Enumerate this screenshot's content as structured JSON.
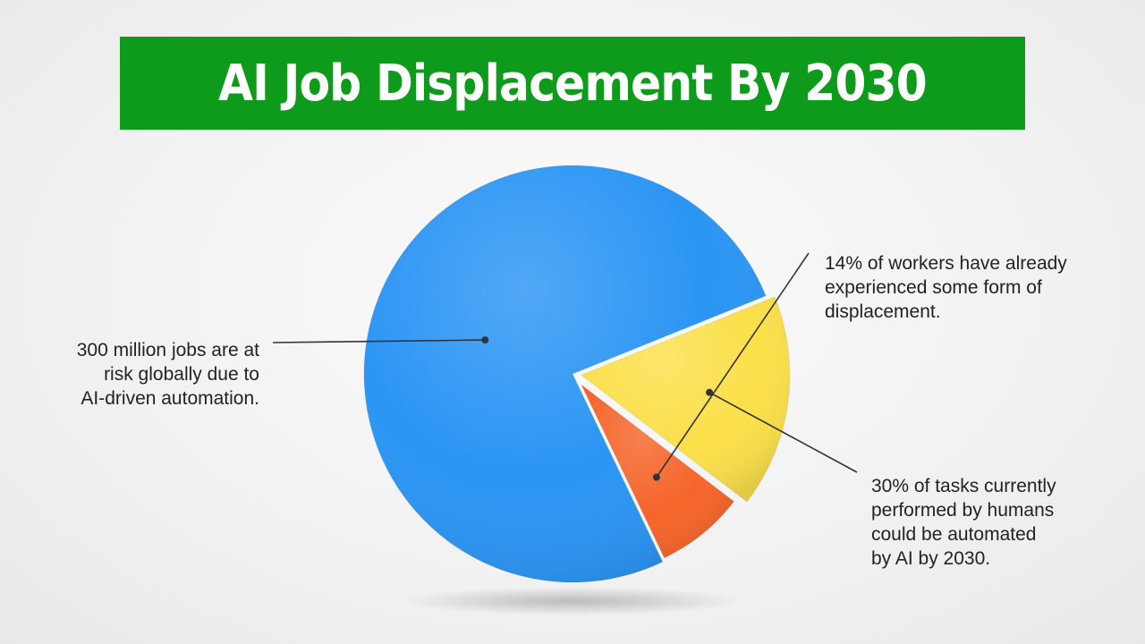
{
  "title": "AI Job Displacement By 2030",
  "colors": {
    "banner": "#0e9a1a",
    "title_text": "#ffffff",
    "background": "#f2f2f2",
    "leader_line": "#333333"
  },
  "chart_data": {
    "type": "pie",
    "title": "AI Job Displacement By 2030",
    "slices": [
      {
        "key": "jobs_at_risk",
        "percent": 76.0,
        "color": "#2b95f4",
        "label_lines": [
          "300 million jobs are at",
          "risk globally due to",
          "AI-driven automation."
        ]
      },
      {
        "key": "already_displaced",
        "percent": 7.5,
        "color": "#f5652a",
        "label_lines": [
          "14% of workers have already",
          "experienced some form of",
          "displacement."
        ]
      },
      {
        "key": "tasks_automated",
        "percent": 16.5,
        "color": "#fbe04a",
        "label_lines": [
          "30% of tasks currently",
          "performed by humans",
          "could be automated",
          "by AI by 2030."
        ]
      }
    ],
    "legend": "none"
  }
}
